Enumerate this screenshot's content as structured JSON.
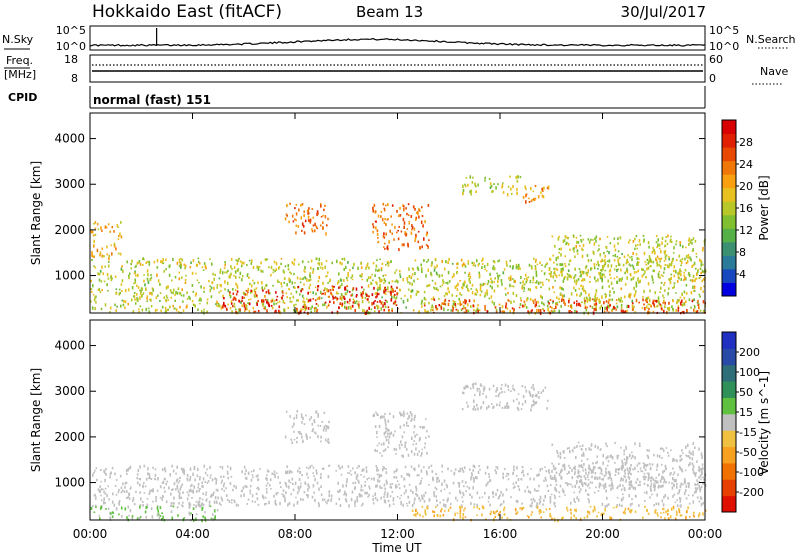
{
  "header": {
    "station": "Hokkaido East (fitACF)",
    "beam": "Beam 13",
    "date": "30/Jul/2017"
  },
  "noise_panel": {
    "left_label": "N.Sky",
    "right_label": "N.Search",
    "left_ticks": [
      "10^5",
      "10^0"
    ],
    "right_ticks": [
      "10^5",
      "10^0"
    ]
  },
  "freq_panel": {
    "left_label_1": "Freq.",
    "left_label_2": "[MHz]",
    "left_ticks": [
      "18",
      "8"
    ],
    "right_label": "Nave",
    "right_ticks": [
      "60",
      "0"
    ]
  },
  "cpid_panel": {
    "label": "CPID",
    "text": "normal (fast) 151"
  },
  "range_axis": {
    "label": "Slant Range [km]",
    "ticks": [
      "4000",
      "3000",
      "2000",
      "1000"
    ]
  },
  "time_axis": {
    "label": "Time UT",
    "ticks": [
      "00:00",
      "04:00",
      "08:00",
      "12:00",
      "16:00",
      "20:00",
      "00:00"
    ]
  },
  "power_scale": {
    "label": "Power [dB]",
    "ticks": [
      "28",
      "24",
      "20",
      "16",
      "12",
      "8",
      "4"
    ],
    "colors": [
      "#0000e0",
      "#1848c0",
      "#2a7a9a",
      "#3a9070",
      "#55b048",
      "#80c030",
      "#b8c828",
      "#e8c020",
      "#f8a010",
      "#f07808",
      "#e84800",
      "#e02000",
      "#d80000"
    ]
  },
  "velocity_scale": {
    "label": "Velocity [m s^-1]",
    "ticks": [
      "200",
      "100",
      "50",
      "15",
      "-15",
      "-50",
      "-100",
      "-200"
    ],
    "colors": [
      "#2030c0",
      "#2a4aa8",
      "#2e6e78",
      "#30905a",
      "#60c040",
      "#c0c0c0",
      "#f0c040",
      "#f8a020",
      "#f07000",
      "#e84000",
      "#e01000"
    ]
  },
  "chart_data": [
    {
      "type": "heatmap",
      "title": "Power",
      "xlabel": "Time UT",
      "ylabel": "Slant Range [km]",
      "xlim": [
        "00:00",
        "24:00"
      ],
      "ylim": [
        180,
        4560
      ],
      "colorbar": "Power [dB]",
      "colorbar_range": [
        0,
        32
      ],
      "regions": [
        {
          "t_start": 0.0,
          "t_end": 24.0,
          "r_min": 200,
          "r_max": 1400,
          "value": 16
        },
        {
          "t_start": 0.0,
          "t_end": 1.2,
          "r_min": 1400,
          "r_max": 2200,
          "value": 20
        },
        {
          "t_start": 5.0,
          "t_end": 7.5,
          "r_min": 200,
          "r_max": 700,
          "value": 28
        },
        {
          "t_start": 8.0,
          "t_end": 12.0,
          "r_min": 200,
          "r_max": 800,
          "value": 28
        },
        {
          "t_start": 7.6,
          "t_end": 9.3,
          "r_min": 1900,
          "r_max": 2600,
          "value": 24
        },
        {
          "t_start": 11.0,
          "t_end": 13.2,
          "r_min": 1600,
          "r_max": 2600,
          "value": 24
        },
        {
          "t_start": 14.5,
          "t_end": 16.8,
          "r_min": 2800,
          "r_max": 3200,
          "value": 16
        },
        {
          "t_start": 16.8,
          "t_end": 18.0,
          "r_min": 2600,
          "r_max": 3000,
          "value": 22
        },
        {
          "t_start": 13.0,
          "t_end": 24.0,
          "r_min": 200,
          "r_max": 500,
          "value": 26
        },
        {
          "t_start": 18.0,
          "t_end": 24.0,
          "r_min": 900,
          "r_max": 1900,
          "value": 16
        }
      ]
    },
    {
      "type": "heatmap",
      "title": "Velocity",
      "xlabel": "Time UT",
      "ylabel": "Slant Range [km]",
      "xlim": [
        "00:00",
        "24:00"
      ],
      "ylim": [
        180,
        4560
      ],
      "colorbar": "Velocity [m s^-1]",
      "colorbar_range": [
        -250,
        250
      ],
      "regions": [
        {
          "t_start": 0.0,
          "t_end": 24.0,
          "r_min": 500,
          "r_max": 1400,
          "value": 0
        },
        {
          "t_start": 0.0,
          "t_end": 5.0,
          "r_min": 200,
          "r_max": 500,
          "value": 30
        },
        {
          "t_start": 12.5,
          "t_end": 24.0,
          "r_min": 200,
          "r_max": 500,
          "value": -60
        },
        {
          "t_start": 7.6,
          "t_end": 9.3,
          "r_min": 1900,
          "r_max": 2600,
          "value": 0
        },
        {
          "t_start": 11.0,
          "t_end": 13.2,
          "r_min": 1600,
          "r_max": 2600,
          "value": 0
        },
        {
          "t_start": 14.5,
          "t_end": 18.0,
          "r_min": 2600,
          "r_max": 3200,
          "value": 0
        },
        {
          "t_start": 18.0,
          "t_end": 24.0,
          "r_min": 900,
          "r_max": 1900,
          "value": 0
        }
      ]
    }
  ]
}
